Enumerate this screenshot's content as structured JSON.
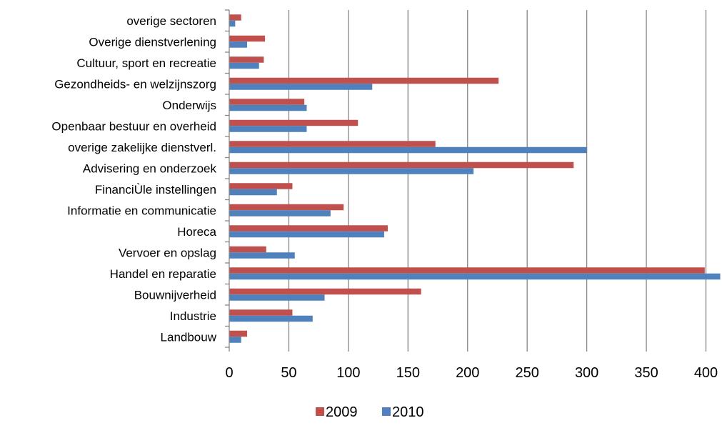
{
  "chart_data": {
    "type": "bar",
    "orientation": "horizontal",
    "categories": [
      "overige sectoren",
      "Overige dienstverlening",
      "Cultuur, sport en recreatie",
      "Gezondheids- en welzijnszorg",
      "Onderwijs",
      "Openbaar bestuur en overheid",
      "overige zakelijke dienstverl.",
      "Advisering en onderzoek",
      "FinanciÙle instellingen",
      "Informatie en communicatie",
      "Horeca",
      "Vervoer en opslag",
      "Handel en reparatie",
      "Bouwnijverheid",
      "Industrie",
      "Landbouw"
    ],
    "series": [
      {
        "name": "2009",
        "color": "#C0504D",
        "values": [
          10,
          30,
          29,
          226,
          63,
          108,
          173,
          289,
          53,
          96,
          133,
          31,
          399,
          161,
          53,
          15
        ]
      },
      {
        "name": "2010",
        "color": "#4F81BD",
        "values": [
          5,
          15,
          25,
          120,
          65,
          65,
          300,
          205,
          40,
          85,
          130,
          55,
          412,
          80,
          70,
          10
        ]
      }
    ],
    "x_ticks": [
      "0",
      "50",
      "100",
      "150",
      "200",
      "250",
      "300",
      "350",
      "400"
    ],
    "xlim": [
      0,
      412
    ],
    "grid": true,
    "legend_position": "bottom",
    "title": "",
    "xlabel": "",
    "ylabel": ""
  }
}
